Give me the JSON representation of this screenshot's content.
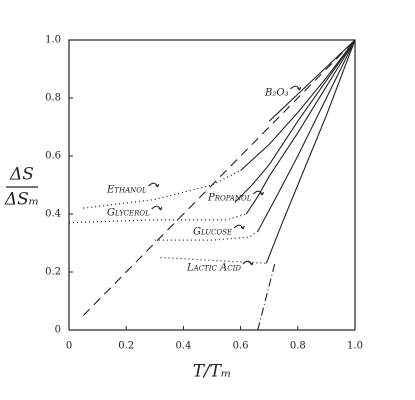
{
  "chart_data": {
    "type": "line",
    "ylabel": {
      "numerator": "ΔS",
      "denominator": "ΔSₘ"
    },
    "xlabel": "T/Tₘ",
    "xlim": [
      0,
      1
    ],
    "ylim": [
      0,
      1
    ],
    "xticks": [
      0,
      0.2,
      0.4,
      0.6,
      0.8,
      {
        "value": 1,
        "label": "1.0"
      }
    ],
    "yticks": [
      0,
      0.2,
      0.4,
      0.6,
      0.8,
      {
        "value": 1,
        "label": "1.0"
      }
    ],
    "color": "#222222",
    "series": [
      {
        "style": "dashed",
        "x": [
          0.05,
          1
        ],
        "values": [
          0.05,
          1
        ]
      },
      {
        "style": "dashdot",
        "x": [
          0.66,
          0.72
        ],
        "values": [
          0,
          0.23
        ]
      },
      {
        "name": "B₂O₃",
        "style": "solid",
        "x": [
          0.7,
          0.85,
          1
        ],
        "values": [
          0.72,
          0.86,
          1
        ]
      },
      {
        "name": "Ethanol",
        "style": "solid",
        "x": [
          0.6,
          0.7,
          0.8,
          0.9,
          1
        ],
        "values": [
          0.55,
          0.64,
          0.75,
          0.87,
          1
        ]
      },
      {
        "style": "dotted",
        "x": [
          0.05,
          0.3,
          0.5,
          0.6
        ],
        "values": [
          0.42,
          0.45,
          0.5,
          0.55
        ]
      },
      {
        "name": "Glycerol",
        "style": "solid",
        "x": [
          0.62,
          0.66,
          0.7,
          0.8,
          0.9,
          1
        ],
        "values": [
          0.4,
          0.46,
          0.53,
          0.68,
          0.84,
          1
        ]
      },
      {
        "style": "dotted",
        "x": [
          0,
          0.3,
          0.55,
          0.62
        ],
        "values": [
          0.37,
          0.38,
          0.38,
          0.4
        ]
      },
      {
        "name": "Propanol",
        "style": "solid",
        "x": [
          0.58,
          0.64,
          0.7,
          0.8,
          0.9,
          1
        ],
        "values": [
          0.44,
          0.5,
          0.57,
          0.72,
          0.86,
          1
        ]
      },
      {
        "name": "Glucose",
        "style": "solid",
        "x": [
          0.66,
          0.72,
          0.8,
          0.9,
          1
        ],
        "values": [
          0.34,
          0.45,
          0.6,
          0.8,
          1
        ]
      },
      {
        "style": "dotted",
        "x": [
          0.3,
          0.5,
          0.63,
          0.66
        ],
        "values": [
          0.31,
          0.31,
          0.32,
          0.34
        ]
      },
      {
        "name": "Lactic Acid",
        "style": "solid",
        "x": [
          0.69,
          0.75,
          0.8,
          0.9,
          1
        ],
        "values": [
          0.23,
          0.38,
          0.5,
          0.74,
          1
        ]
      },
      {
        "style": "dotted",
        "x": [
          0.32,
          0.5,
          0.69
        ],
        "values": [
          0.25,
          0.24,
          0.23
        ]
      }
    ]
  }
}
